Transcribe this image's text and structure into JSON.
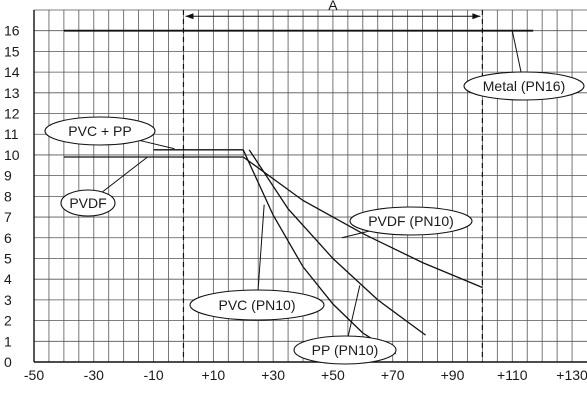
{
  "chart_data": {
    "type": "line",
    "xlim": [
      -50,
      135
    ],
    "ylim": [
      0,
      17
    ],
    "grid": true,
    "x_ticks": [
      -50,
      -30,
      -10,
      10,
      30,
      50,
      70,
      90,
      110,
      130
    ],
    "x_tick_labels": [
      "-50",
      "-30",
      "-10",
      "+10",
      "+30",
      "+50",
      "+70",
      "+90",
      "+110",
      "+130"
    ],
    "y_ticks": [
      0,
      1,
      2,
      3,
      4,
      5,
      6,
      7,
      8,
      9,
      10,
      11,
      12,
      13,
      14,
      15,
      16
    ],
    "y_tick_labels": [
      "0",
      "1",
      "2",
      "3",
      "4",
      "5",
      "6",
      "7",
      "8",
      "9",
      "10",
      "11",
      "12",
      "13",
      "14",
      "15",
      "16"
    ],
    "series": [
      {
        "name": "Metal (PN16)",
        "x": [
          -40,
          117
        ],
        "y": [
          16,
          16
        ]
      },
      {
        "name": "PVC + PP",
        "x": [
          -10,
          20
        ],
        "y": [
          10.25,
          10.25
        ]
      },
      {
        "name": "PVDF",
        "x": [
          -40,
          20
        ],
        "y": [
          9.9,
          9.9
        ]
      },
      {
        "name": "PVC (PN10)",
        "x": [
          20,
          30,
          40,
          50,
          60,
          71
        ],
        "y": [
          10.25,
          7.1,
          4.6,
          2.8,
          1.4,
          0.4
        ]
      },
      {
        "name": "PP (PN10)",
        "x": [
          22,
          35,
          50,
          65,
          81
        ],
        "y": [
          10.25,
          7.4,
          5.0,
          3.0,
          1.3
        ]
      },
      {
        "name": "PVDF (PN10)",
        "x": [
          20,
          40,
          60,
          80,
          100
        ],
        "y": [
          9.9,
          7.8,
          6.2,
          4.8,
          3.6
        ]
      }
    ],
    "annotations": [
      {
        "text": "A",
        "x_range": [
          0,
          100
        ],
        "y": 16.7,
        "style": "double-arrow"
      },
      {
        "text": "Metal (PN16)",
        "target_x": 110,
        "target_y": 16
      },
      {
        "text": "PVC + PP",
        "target_x": -3,
        "target_y": 10.3
      },
      {
        "text": "PVDF",
        "target_x": -12,
        "target_y": 9.9
      },
      {
        "text": "PVDF (PN10)",
        "target_x": 53,
        "target_y": 6.0
      },
      {
        "text": "PVC (PN10)",
        "target_x": 27,
        "target_y": 7.6
      },
      {
        "text": "PP (PN10)",
        "target_x": 59,
        "target_y": 3.7
      }
    ],
    "vlines": [
      0,
      100
    ]
  }
}
